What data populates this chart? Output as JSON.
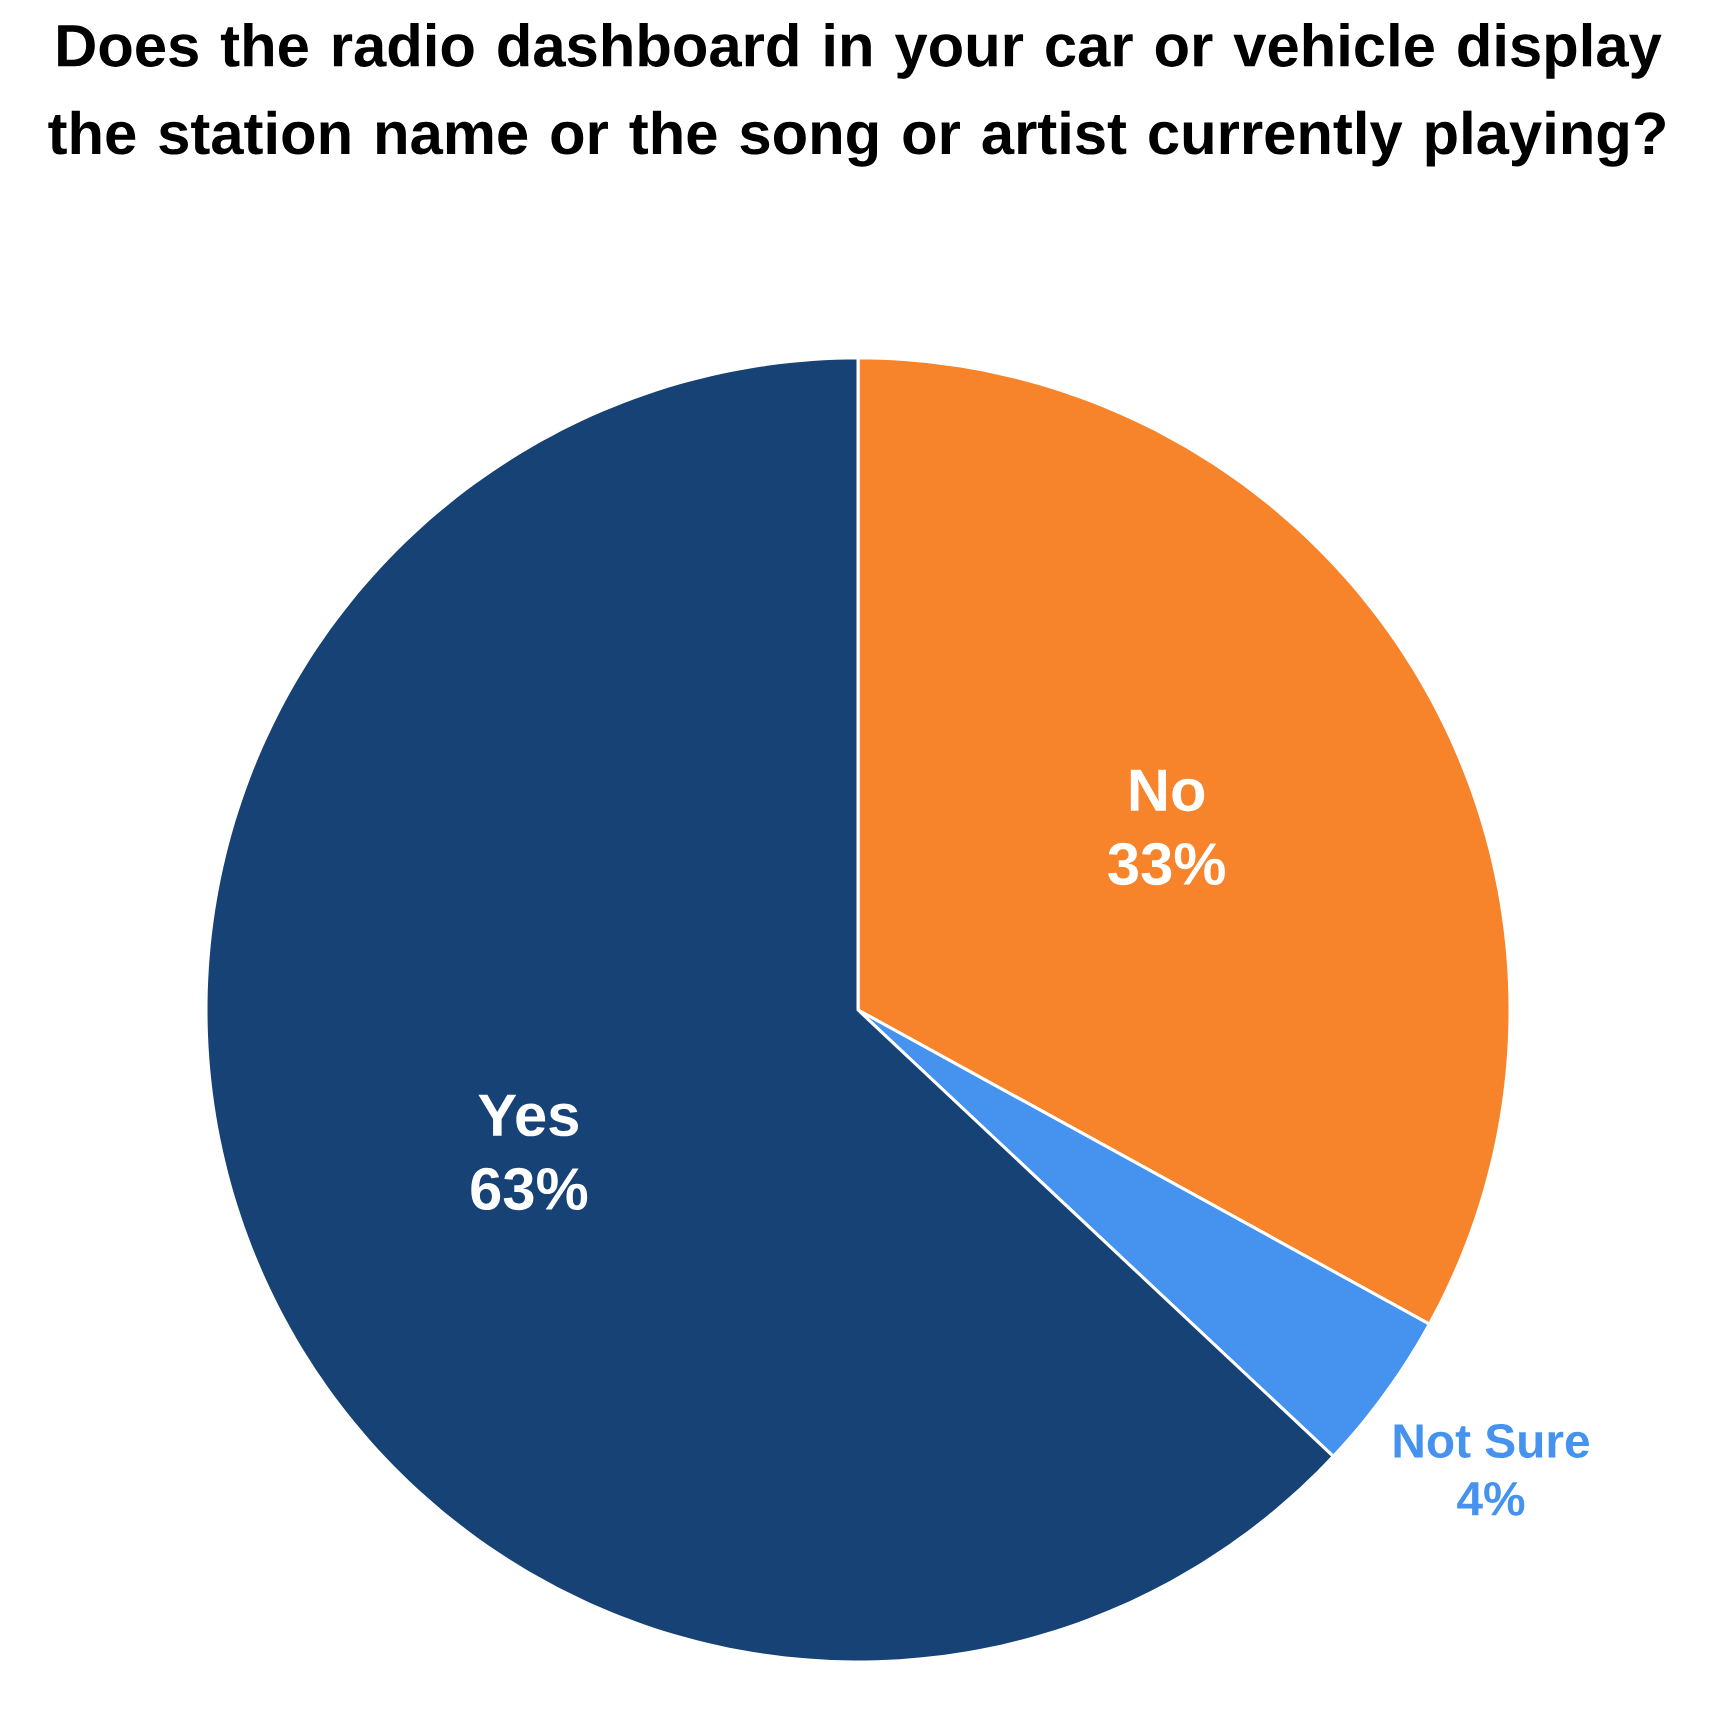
{
  "chart_data": {
    "type": "pie",
    "title": "Does the radio dashboard in your car or vehicle display the station name or the song or artist currently playing?",
    "categories": [
      "No",
      "Not Sure",
      "Yes"
    ],
    "values": [
      33,
      4,
      63
    ],
    "colors": [
      "#f7832a",
      "#4592ef",
      "#174275"
    ],
    "value_labels": [
      "33%",
      "4%",
      "63%"
    ]
  }
}
